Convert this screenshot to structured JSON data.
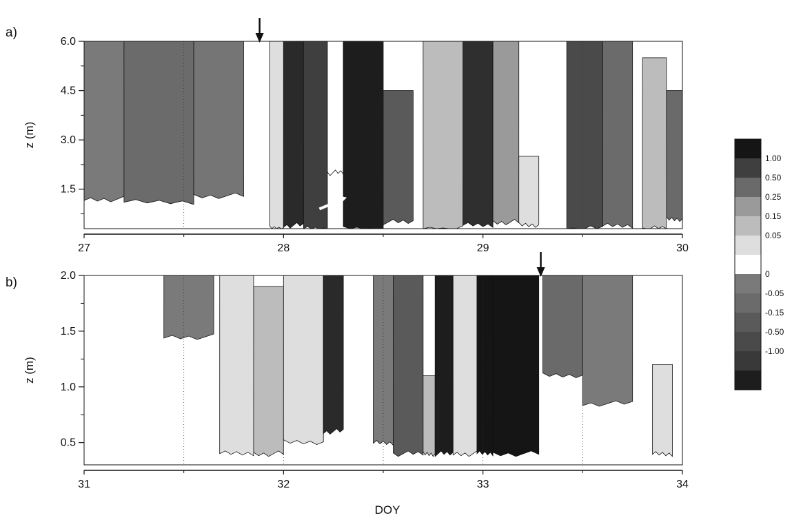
{
  "figure": {
    "xlabel": "DOY"
  },
  "colorbar": {
    "colors": [
      "#151515",
      "#3f3f3f",
      "#6a6a6a",
      "#9a9a9a",
      "#bcbcbc",
      "#dedede",
      "#ffffff",
      "#7a7a7a",
      "#6b6b6b",
      "#5a5a5a",
      "#4a4a4a",
      "#393939",
      "#1d1d1d"
    ],
    "labels": [
      "1.00",
      "0.50",
      "0.25",
      "0.15",
      "0.05",
      "0",
      "-0.05",
      "-0.15",
      "-0.50",
      "-1.00"
    ]
  },
  "chart_data": [
    {
      "type": "heatmap",
      "panel_label": "a)",
      "ylabel": "z (m)",
      "xlim": [
        27,
        30
      ],
      "ylim": [
        0.3,
        6.0
      ],
      "xticks": [
        "27",
        "28",
        "29",
        "30"
      ],
      "yticks": [
        "1.5",
        "3.0",
        "4.5",
        "6.0"
      ],
      "ytick_values": [
        1.5,
        3.0,
        4.5,
        6.0
      ],
      "dotted_lines_x": [
        27.5,
        28.0,
        28.5,
        29.0,
        29.5
      ],
      "arrow_x": 27.88,
      "columns": [
        {
          "x0": 27.0,
          "x1": 27.2,
          "fill": "#7a7a7a",
          "z_top": 6.0,
          "z_bot": 1.2
        },
        {
          "x0": 27.2,
          "x1": 27.55,
          "fill": "#6b6b6b",
          "z_top": 6.0,
          "z_bot": 1.1
        },
        {
          "x0": 27.55,
          "x1": 27.8,
          "fill": "#757575",
          "z_top": 6.0,
          "z_bot": 1.3
        },
        {
          "x0": 27.93,
          "x1": 28.0,
          "fill": "#dedede",
          "z_top": 6.0,
          "z_bot": 0.3
        },
        {
          "x0": 28.0,
          "x1": 28.1,
          "fill": "#2a2a2a",
          "z_top": 6.0,
          "z_bot": 0.4
        },
        {
          "x0": 28.1,
          "x1": 28.22,
          "fill": "#3f3f3f",
          "z_top": 6.0,
          "z_bot": 0.3
        },
        {
          "x0": 28.22,
          "x1": 28.3,
          "fill": "#ffffff",
          "z_top": 6.0,
          "z_bot": 2.0
        },
        {
          "x0": 28.3,
          "x1": 28.5,
          "fill": "#1d1d1d",
          "z_top": 6.0,
          "z_bot": 0.3
        },
        {
          "x0": 28.5,
          "x1": 28.65,
          "fill": "#5a5a5a",
          "z_top": 4.5,
          "z_bot": 0.5
        },
        {
          "x0": 28.7,
          "x1": 28.9,
          "fill": "#bcbcbc",
          "z_top": 6.0,
          "z_bot": 0.3
        },
        {
          "x0": 28.9,
          "x1": 29.05,
          "fill": "#2f2f2f",
          "z_top": 6.0,
          "z_bot": 0.4
        },
        {
          "x0": 29.05,
          "x1": 29.18,
          "fill": "#9a9a9a",
          "z_top": 6.0,
          "z_bot": 0.5
        },
        {
          "x0": 29.18,
          "x1": 29.28,
          "fill": "#dedede",
          "z_top": 2.5,
          "z_bot": 0.4
        },
        {
          "x0": 29.42,
          "x1": 29.6,
          "fill": "#4a4a4a",
          "z_top": 6.0,
          "z_bot": 0.3
        },
        {
          "x0": 29.6,
          "x1": 29.75,
          "fill": "#6b6b6b",
          "z_top": 6.0,
          "z_bot": 0.4
        },
        {
          "x0": 29.8,
          "x1": 29.92,
          "fill": "#bcbcbc",
          "z_top": 5.5,
          "z_bot": 0.3
        },
        {
          "x0": 29.92,
          "x1": 30.0,
          "fill": "#6a6a6a",
          "z_top": 4.5,
          "z_bot": 0.6
        }
      ]
    },
    {
      "type": "heatmap",
      "panel_label": "b)",
      "ylabel": "z (m)",
      "xlim": [
        31,
        34
      ],
      "ylim": [
        0.3,
        2.0
      ],
      "xticks": [
        "31",
        "32",
        "33",
        "34"
      ],
      "yticks": [
        "0.5",
        "1.0",
        "1.5",
        "2.0"
      ],
      "ytick_values": [
        0.5,
        1.0,
        1.5,
        2.0
      ],
      "dotted_lines_x": [
        31.5,
        32.0,
        32.5,
        33.0,
        33.5
      ],
      "arrow_x": 33.29,
      "columns": [
        {
          "x0": 31.4,
          "x1": 31.65,
          "fill": "#7a7a7a",
          "z_top": 2.0,
          "z_bot": 1.45
        },
        {
          "x0": 31.68,
          "x1": 31.85,
          "fill": "#dedede",
          "z_top": 2.0,
          "z_bot": 0.4
        },
        {
          "x0": 31.85,
          "x1": 32.0,
          "fill": "#bcbcbc",
          "z_top": 1.9,
          "z_bot": 0.4
        },
        {
          "x0": 32.0,
          "x1": 32.2,
          "fill": "#dedede",
          "z_top": 2.0,
          "z_bot": 0.5
        },
        {
          "x0": 32.2,
          "x1": 32.3,
          "fill": "#2a2a2a",
          "z_top": 2.0,
          "z_bot": 0.6
        },
        {
          "x0": 32.45,
          "x1": 32.55,
          "fill": "#7a7a7a",
          "z_top": 2.0,
          "z_bot": 0.5
        },
        {
          "x0": 32.55,
          "x1": 32.7,
          "fill": "#5a5a5a",
          "z_top": 2.0,
          "z_bot": 0.4
        },
        {
          "x0": 32.7,
          "x1": 32.76,
          "fill": "#bcbcbc",
          "z_top": 1.1,
          "z_bot": 0.4
        },
        {
          "x0": 32.76,
          "x1": 32.85,
          "fill": "#1d1d1d",
          "z_top": 2.0,
          "z_bot": 0.4
        },
        {
          "x0": 32.85,
          "x1": 32.97,
          "fill": "#dedede",
          "z_top": 2.0,
          "z_bot": 0.4
        },
        {
          "x0": 32.97,
          "x1": 33.05,
          "fill": "#151515",
          "z_top": 2.0,
          "z_bot": 0.4
        },
        {
          "x0": 33.05,
          "x1": 33.28,
          "fill": "#151515",
          "z_top": 2.0,
          "z_bot": 0.4
        },
        {
          "x0": 33.3,
          "x1": 33.5,
          "fill": "#6a6a6a",
          "z_top": 2.0,
          "z_bot": 1.1
        },
        {
          "x0": 33.5,
          "x1": 33.75,
          "fill": "#7a7a7a",
          "z_top": 2.0,
          "z_bot": 0.85
        },
        {
          "x0": 33.85,
          "x1": 33.95,
          "fill": "#dedede",
          "z_top": 1.2,
          "z_bot": 0.4
        }
      ]
    }
  ]
}
